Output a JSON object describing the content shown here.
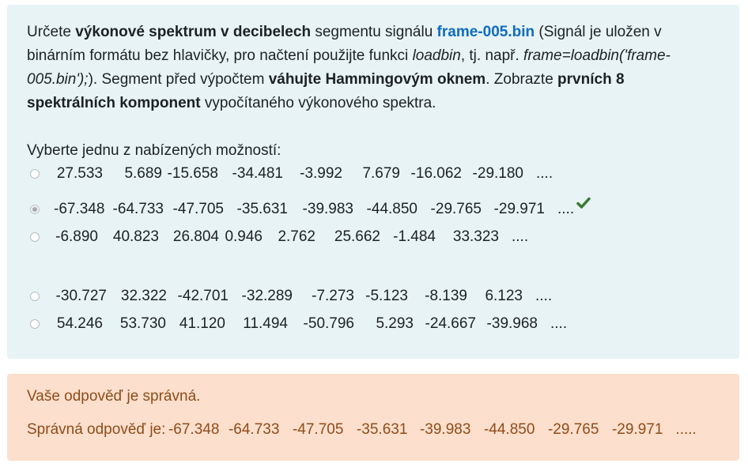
{
  "question": {
    "text_1": "Určete ",
    "bold_1": "výkonové spektrum v decibelech",
    "text_2": " segmentu signálu ",
    "link": "frame-005.bin",
    "text_3": " (Signál je uložen v binárním formátu bez hlavičky, pro načtení použijte funkci ",
    "italic_1": "loadbin",
    "text_4": ", tj. např. ",
    "italic_2": "frame=loadbin('frame-005.bin');",
    "text_5": "). Segment před výpočtem ",
    "bold_2": "váhujte Hammingovým oknem",
    "text_6": ". Zobrazte ",
    "bold_3": "prvních 8 spektrálních komponent",
    "text_7": " vypočítaného výkonového spektra.",
    "prompt": "Vyberte jednu z nabízených možností:"
  },
  "options": [
    {
      "values": [
        "27.533",
        "5.689",
        "-15.658",
        "-34.481",
        "-3.992",
        "7.679",
        "-16.062",
        "-29.180"
      ],
      "ellipsis": "....",
      "selected": false,
      "correct": false
    },
    {
      "values": [
        "-67.348",
        "-64.733",
        "-47.705",
        "-35.631",
        "-39.983",
        "-44.850",
        "-29.765",
        "-29.971"
      ],
      "ellipsis": "....",
      "selected": true,
      "correct": true
    },
    {
      "values": [
        "-6.890",
        "40.823",
        "26.804",
        "0.946",
        "2.762",
        "25.662",
        "-1.484",
        "33.323"
      ],
      "ellipsis": "....",
      "selected": false,
      "correct": false
    },
    {
      "values": [
        "-30.727",
        "32.322",
        "-42.701",
        "-32.289",
        "-7.273",
        "-5.123",
        "-8.139",
        "6.123"
      ],
      "ellipsis": "....",
      "selected": false,
      "correct": false
    },
    {
      "values": [
        "54.246",
        "53.730",
        "41.120",
        "11.494",
        "-50.796",
        "5.293",
        "-24.667",
        "-39.968"
      ],
      "ellipsis": "....",
      "selected": false,
      "correct": false
    }
  ],
  "feedback": {
    "result": "Vaše odpověď je správná.",
    "correct_prefix": "Správná odpověď je:",
    "correct_values": [
      "-67.348",
      "-64.733",
      "-47.705",
      "-35.631",
      "-39.983",
      "-44.850",
      "-29.765",
      "-29.971"
    ],
    "correct_ellipsis": "....."
  },
  "colors": {
    "question_bg": "#e7f3f5",
    "feedback_bg": "#fcdfcc",
    "feedback_text": "#8e4c1a",
    "link": "#0f6cbf",
    "check": "#357a32"
  },
  "icons": {
    "correct": "check-icon"
  }
}
